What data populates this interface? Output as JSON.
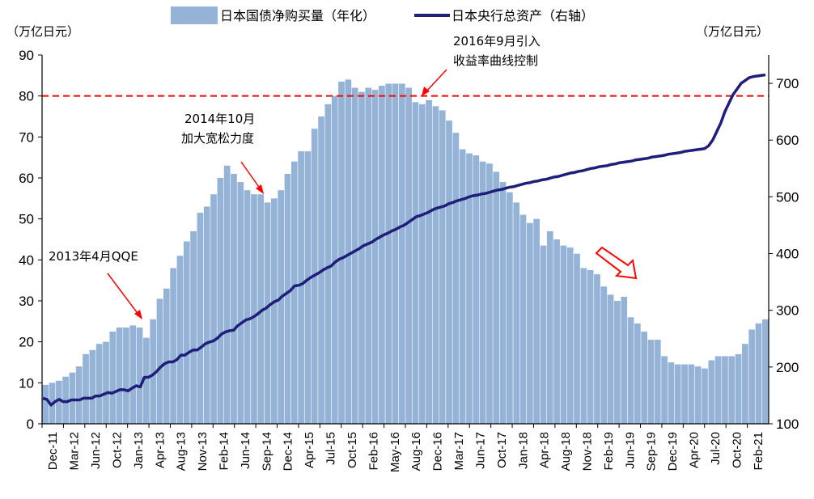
{
  "chart_data": {
    "type": "bar+line",
    "unit_left": "（万亿日元）",
    "unit_right": "（万亿日元）",
    "legend": [
      {
        "name": "日本国债净购买量（年化）",
        "color": "#95b3d7",
        "kind": "bar"
      },
      {
        "name": "日本央行总资产（右轴）",
        "color": "#1f1f7a",
        "kind": "line"
      }
    ],
    "y_left": {
      "min": 0,
      "max": 90,
      "ticks": [
        0,
        10,
        20,
        30,
        40,
        50,
        60,
        70,
        80,
        90
      ]
    },
    "y_right": {
      "min": 100,
      "max": 750,
      "ticks": [
        100,
        200,
        300,
        400,
        500,
        600,
        700
      ]
    },
    "reference_line": {
      "value": 80,
      "axis": "left",
      "color": "#ff0000",
      "style": "dashed"
    },
    "x_labels": [
      "Dec-11",
      "Mar-12",
      "Jun-12",
      "Oct-12",
      "Jan-13",
      "Apr-13",
      "Aug-13",
      "Nov-13",
      "Feb-14",
      "Jun-14",
      "Sep-14",
      "Dec-14",
      "Apr-15",
      "Jul-15",
      "Oct-15",
      "Feb-16",
      "May-16",
      "Aug-16",
      "Dec-16",
      "Mar-17",
      "Jun-17",
      "Oct-17",
      "Jan-18",
      "Apr-18",
      "Aug-18",
      "Nov-18",
      "Feb-19",
      "Jun-19",
      "Sep-19",
      "Dec-19",
      "Apr-20",
      "Jul-20",
      "Oct-20",
      "Feb-21"
    ],
    "bar_values": [
      9.5,
      10,
      10.5,
      11.5,
      12.5,
      14,
      17,
      18,
      19.5,
      20,
      22.5,
      23.5,
      23.5,
      24,
      23.5,
      21,
      25.5,
      30.5,
      33,
      38,
      41,
      44.5,
      47,
      51.5,
      53,
      56,
      60,
      63,
      61,
      59,
      57,
      56,
      56,
      54,
      55,
      57,
      61,
      64,
      66.5,
      66.5,
      72,
      75,
      78,
      80,
      83.5,
      84,
      82,
      81,
      82,
      81.5,
      82.5,
      83,
      83,
      83,
      82,
      78.5,
      78,
      79,
      77.5,
      76.5,
      74,
      71,
      67,
      66,
      65.5,
      64,
      63.5,
      61.5,
      59,
      56.5,
      54,
      51,
      49,
      50,
      43.5,
      47,
      45,
      43.5,
      43,
      41.5,
      38,
      37.5,
      36.5,
      33.5,
      31.5,
      30,
      31,
      26,
      24.5,
      22.5,
      20.5,
      20.5,
      16.5,
      15,
      14.5,
      14.5,
      14.5,
      14,
      13.5,
      15.5,
      16.5,
      16.5,
      16.5,
      17,
      19.5,
      23,
      24.5,
      25.5
    ],
    "line_values": [
      145,
      143,
      133,
      139,
      143,
      139,
      139,
      142,
      142,
      142,
      145,
      145,
      145,
      149,
      149,
      152,
      155,
      154,
      157,
      160,
      160,
      158,
      163,
      167,
      165,
      182,
      182,
      186,
      192,
      200,
      206,
      209,
      209,
      213,
      221,
      221,
      226,
      230,
      230,
      235,
      241,
      244,
      246,
      251,
      258,
      262,
      264,
      265,
      273,
      278,
      283,
      285,
      289,
      294,
      300,
      304,
      310,
      315,
      318,
      325,
      330,
      335,
      343,
      344,
      347,
      353,
      358,
      362,
      366,
      371,
      375,
      378,
      385,
      390,
      393,
      397,
      401,
      405,
      409,
      414,
      417,
      420,
      425,
      429,
      433,
      436,
      440,
      443,
      447,
      450,
      455,
      460,
      465,
      467,
      470,
      473,
      477,
      480,
      482,
      484,
      488,
      490,
      493,
      495,
      497,
      500,
      502,
      503,
      505,
      506,
      508,
      510,
      512,
      513,
      515,
      517,
      518,
      520,
      522,
      524,
      525,
      527,
      528,
      530,
      531,
      533,
      535,
      536,
      538,
      540,
      542,
      543,
      545,
      546,
      548,
      550,
      551,
      553,
      554,
      555,
      557,
      558,
      560,
      561,
      562,
      563,
      565,
      566,
      567,
      568,
      570,
      571,
      572,
      573,
      575,
      576,
      577,
      578,
      580,
      581,
      582,
      583,
      584,
      585,
      590,
      600,
      615,
      630,
      650,
      665,
      680,
      690,
      700,
      705,
      710,
      712,
      713,
      714,
      715
    ]
  },
  "annotations": {
    "qoe": "2013年4月QQE",
    "easing_year": "2014年10月",
    "easing_text": "加大宽松力度",
    "ycc_year": "2016年9月引入",
    "ycc_text": "收益率曲线控制"
  }
}
